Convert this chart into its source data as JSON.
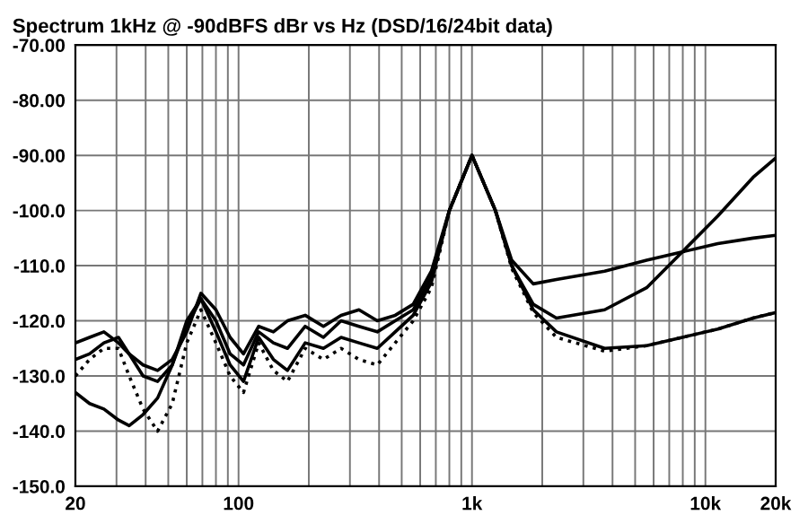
{
  "chart_data": {
    "type": "line",
    "title": "Spectrum 1kHz @ -90dBFS dBr vs Hz (DSD/16/24bit data)",
    "x": [
      20,
      23,
      26.5,
      30.6,
      34,
      39,
      45,
      52,
      60,
      69,
      80,
      92,
      105,
      122,
      141,
      162,
      193,
      231,
      275,
      328,
      393,
      469,
      560,
      670,
      800,
      1000,
      1260,
      1480,
      1830,
      2300,
      3700,
      5600,
      7960,
      11300,
      16000,
      20000
    ],
    "series": [
      {
        "color": "#000000",
        "line_style": "solid",
        "values": [
          -127,
          -126,
          -124,
          -123,
          -126,
          -130,
          -131,
          -128,
          -121,
          -116,
          -120,
          -126,
          -128,
          -122,
          -124,
          -125,
          -121,
          -123,
          -120,
          -121,
          -122,
          -120,
          -118,
          -112,
          -100,
          -90,
          -100,
          -110,
          -117,
          -119.5,
          -118,
          -114,
          -107.5,
          -101,
          -94,
          -90.5
        ]
      },
      {
        "color": "#000000",
        "line_style": "solid",
        "values": [
          -124,
          -123,
          -122,
          -124,
          -126,
          -128,
          -129,
          -127,
          -122,
          -115,
          -118,
          -123,
          -126,
          -121,
          -122,
          -120,
          -119,
          -121,
          -119,
          -118,
          -120,
          -119,
          -117,
          -111,
          -100,
          -90,
          -100,
          -109,
          -113.3,
          -112.5,
          -111,
          -109,
          -107.5,
          -106,
          -105,
          -104.5
        ]
      },
      {
        "color": "#000000",
        "line_style": "solid",
        "values": [
          -133,
          -135,
          -136,
          -138,
          -139,
          -137,
          -134,
          -128,
          -120,
          -116,
          -122,
          -128,
          -131,
          -123,
          -127,
          -129,
          -124,
          -125,
          -123,
          -124,
          -125,
          -122,
          -119,
          -113,
          -100,
          -90,
          -100,
          -110,
          -118,
          -122,
          -125,
          -124.5,
          -123,
          -121.5,
          -119.5,
          -118.5
        ]
      },
      {
        "color": "#000000",
        "line_style": "dotted",
        "values": [
          -130,
          -127,
          -125,
          -125,
          -130,
          -136,
          -140,
          -135,
          -124,
          -118,
          -124,
          -130,
          -133,
          -124,
          -129,
          -131,
          -125,
          -127,
          -125,
          -127,
          -128,
          -124,
          -120,
          -114,
          -100,
          -90,
          -100,
          -110.5,
          -118.5,
          -123,
          -125.5,
          -124.5,
          -123,
          -121.5,
          -119.5,
          -118.5
        ]
      }
    ],
    "log": "x",
    "xlim": [
      20,
      20000
    ],
    "ylim": [
      -150,
      -70
    ],
    "xticks": [
      20,
      {
        "value": 30,
        "label": null
      },
      {
        "value": 40,
        "label": null
      },
      {
        "value": 50,
        "label": null
      },
      {
        "value": 60,
        "label": null
      },
      {
        "value": 70,
        "label": null
      },
      {
        "value": 80,
        "label": null
      },
      {
        "value": 90,
        "label": null
      },
      100,
      {
        "value": 200,
        "label": null
      },
      {
        "value": 300,
        "label": null
      },
      {
        "value": 400,
        "label": null
      },
      {
        "value": 500,
        "label": null
      },
      {
        "value": 600,
        "label": null
      },
      {
        "value": 700,
        "label": null
      },
      {
        "value": 800,
        "label": null
      },
      {
        "value": 900,
        "label": null
      },
      {
        "value": 1000,
        "label": "1k"
      },
      {
        "value": 2000,
        "label": null
      },
      {
        "value": 3000,
        "label": null
      },
      {
        "value": 4000,
        "label": null
      },
      {
        "value": 5000,
        "label": null
      },
      {
        "value": 6000,
        "label": null
      },
      {
        "value": 7000,
        "label": null
      },
      {
        "value": 8000,
        "label": null
      },
      {
        "value": 9000,
        "label": null
      },
      {
        "value": 10000,
        "label": "10k"
      },
      {
        "value": 20000,
        "label": "20k"
      }
    ],
    "yticks": [
      {
        "value": -70,
        "label": "-70.00"
      },
      {
        "value": -80,
        "label": "-80.00"
      },
      {
        "value": -90,
        "label": "-90.00"
      },
      {
        "value": -100,
        "label": "-100.0"
      },
      {
        "value": -110,
        "label": "-110.0"
      },
      {
        "value": -120,
        "label": "-120.0"
      },
      {
        "value": -130,
        "label": "-130.0"
      },
      {
        "value": -140,
        "label": "-140.0"
      },
      {
        "value": -150,
        "label": "-150.0"
      }
    ],
    "grid": true
  }
}
